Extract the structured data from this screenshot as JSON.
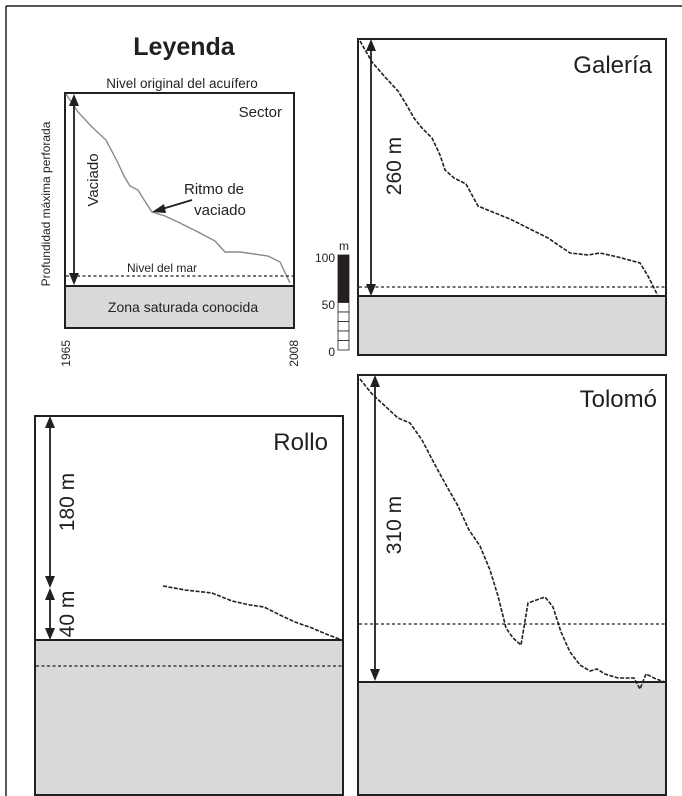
{
  "colors": {
    "ink": "#231f20",
    "saturated_zone": "#d9d9d9",
    "legend_curve": "#8a8a8a",
    "background": "#ffffff"
  },
  "legend": {
    "title": "Leyenda",
    "top_label": "Nivel original del acuífero",
    "sector_label": "Sector",
    "side_label": "Profundidad máxima perforada",
    "drain_label": "Vaciado",
    "rate_label_line1": "Ritmo de",
    "rate_label_line2": "vaciado",
    "sea_level_label": "Nivel del mar",
    "saturated_label": "Zona saturada conocida",
    "year_start": "1965",
    "year_end": "2008"
  },
  "scale_bar": {
    "unit": "m",
    "labels": [
      "100",
      "50",
      "0"
    ],
    "filled_segments": 5,
    "total_segments": 10
  },
  "sectors": {
    "galeria": {
      "name": "Galería",
      "depth_label": "260 m",
      "depth_m": 260
    },
    "rollo": {
      "name": "Rollo",
      "depth_upper_label": "180 m",
      "depth_upper_m": 180,
      "depth_lower_label": "40 m",
      "depth_lower_m": 40
    },
    "tolomo": {
      "name": "Tolomó",
      "depth_label": "310 m",
      "depth_m": 310
    }
  }
}
